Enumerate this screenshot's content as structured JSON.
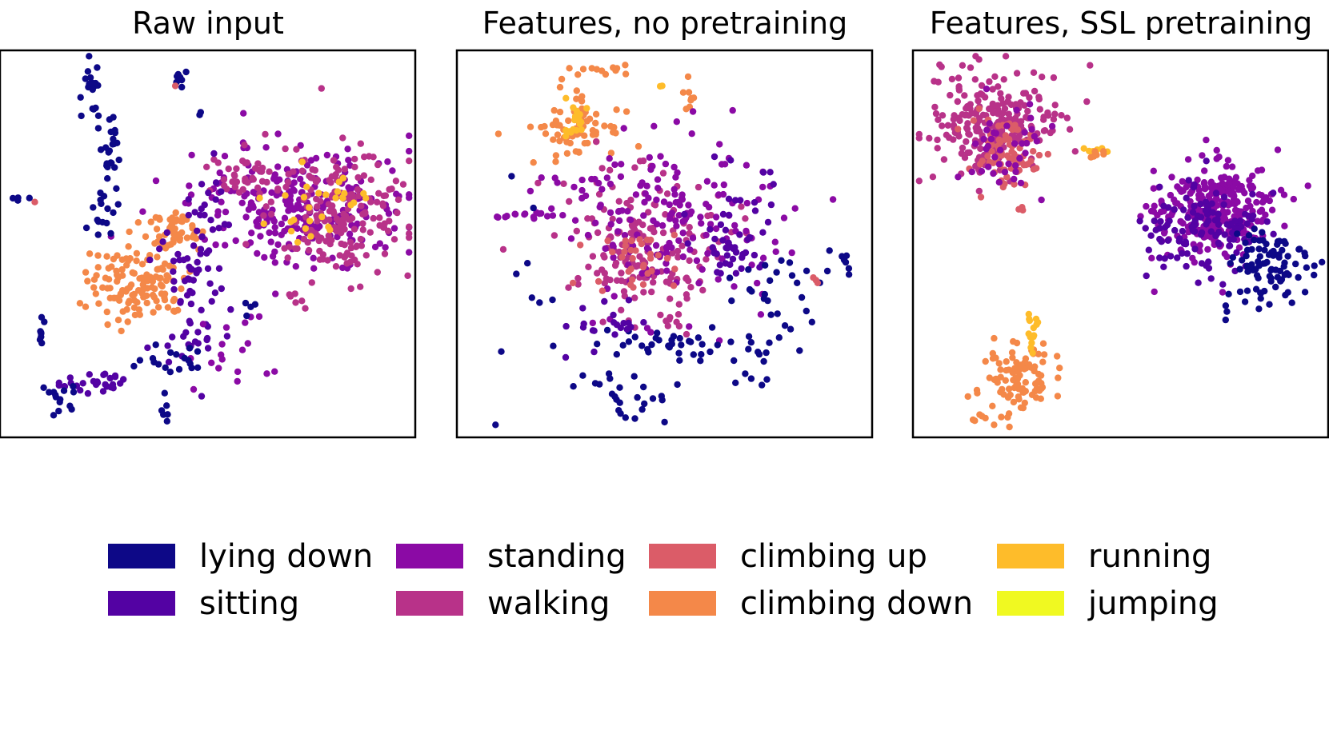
{
  "chart_data": [
    {
      "type": "scatter",
      "title": "Raw input",
      "grid": false,
      "axes_visible": false,
      "clusters": [
        {
          "class": 5,
          "cx": 0.33,
          "cy": 0.6,
          "sx": 0.06,
          "sy": 0.05,
          "n": 130
        },
        {
          "class": 5,
          "cx": 0.42,
          "cy": 0.47,
          "sx": 0.04,
          "sy": 0.03,
          "n": 45
        },
        {
          "class": 2,
          "cx": 0.72,
          "cy": 0.4,
          "sx": 0.13,
          "sy": 0.07,
          "n": 260
        },
        {
          "class": 3,
          "cx": 0.82,
          "cy": 0.42,
          "sx": 0.08,
          "sy": 0.08,
          "n": 190
        },
        {
          "class": 3,
          "cx": 0.6,
          "cy": 0.33,
          "sx": 0.06,
          "sy": 0.03,
          "n": 40
        },
        {
          "class": 6,
          "cx": 0.8,
          "cy": 0.37,
          "sx": 0.06,
          "sy": 0.05,
          "n": 22
        },
        {
          "class": 6,
          "cx": 0.7,
          "cy": 0.46,
          "sx": 0.03,
          "sy": 0.02,
          "n": 8
        },
        {
          "class": 1,
          "cx": 0.46,
          "cy": 0.66,
          "sx": 0.04,
          "sy": 0.1,
          "n": 60
        },
        {
          "class": 1,
          "cx": 0.48,
          "cy": 0.42,
          "sx": 0.03,
          "sy": 0.08,
          "n": 25
        },
        {
          "class": 2,
          "cx": 0.55,
          "cy": 0.78,
          "sx": 0.05,
          "sy": 0.05,
          "n": 18
        },
        {
          "class": 1,
          "cx": 0.22,
          "cy": 0.86,
          "sx": 0.04,
          "sy": 0.015,
          "n": 28
        },
        {
          "class": 0,
          "cx": 0.22,
          "cy": 0.1,
          "sx": 0.012,
          "sy": 0.05,
          "n": 22
        },
        {
          "class": 0,
          "cx": 0.27,
          "cy": 0.25,
          "sx": 0.012,
          "sy": 0.05,
          "n": 22
        },
        {
          "class": 0,
          "cx": 0.25,
          "cy": 0.4,
          "sx": 0.02,
          "sy": 0.04,
          "n": 15
        },
        {
          "class": 0,
          "cx": 0.43,
          "cy": 0.07,
          "sx": 0.008,
          "sy": 0.015,
          "n": 8
        },
        {
          "class": 0,
          "cx": 0.06,
          "cy": 0.38,
          "sx": 0.02,
          "sy": 0.005,
          "n": 5
        },
        {
          "class": 0,
          "cx": 0.1,
          "cy": 0.73,
          "sx": 0.006,
          "sy": 0.025,
          "n": 8
        },
        {
          "class": 0,
          "cx": 0.15,
          "cy": 0.91,
          "sx": 0.02,
          "sy": 0.03,
          "n": 14
        },
        {
          "class": 0,
          "cx": 0.36,
          "cy": 0.8,
          "sx": 0.03,
          "sy": 0.015,
          "n": 10
        },
        {
          "class": 0,
          "cx": 0.4,
          "cy": 0.93,
          "sx": 0.006,
          "sy": 0.02,
          "n": 6
        },
        {
          "class": 0,
          "cx": 0.46,
          "cy": 0.8,
          "sx": 0.015,
          "sy": 0.02,
          "n": 8
        },
        {
          "class": 0,
          "cx": 0.6,
          "cy": 0.67,
          "sx": 0.01,
          "sy": 0.02,
          "n": 4
        },
        {
          "class": 3,
          "cx": 0.72,
          "cy": 0.65,
          "sx": 0.015,
          "sy": 0.01,
          "n": 6
        },
        {
          "class": 0,
          "cx": 0.48,
          "cy": 0.16,
          "sx": 0.004,
          "sy": 0.004,
          "n": 2
        },
        {
          "class": 4,
          "cx": 0.08,
          "cy": 0.4,
          "sx": 0.005,
          "sy": 0.005,
          "n": 1
        },
        {
          "class": 4,
          "cx": 0.43,
          "cy": 0.09,
          "sx": 0.004,
          "sy": 0.004,
          "n": 1
        }
      ]
    },
    {
      "type": "scatter",
      "title": "Features, no pretraining",
      "grid": false,
      "axes_visible": false,
      "clusters": [
        {
          "class": 5,
          "cx": 0.28,
          "cy": 0.2,
          "sx": 0.06,
          "sy": 0.04,
          "n": 70
        },
        {
          "class": 5,
          "cx": 0.36,
          "cy": 0.05,
          "sx": 0.04,
          "sy": 0.008,
          "n": 12
        },
        {
          "class": 5,
          "cx": 0.57,
          "cy": 0.11,
          "sx": 0.015,
          "sy": 0.03,
          "n": 8
        },
        {
          "class": 6,
          "cx": 0.29,
          "cy": 0.18,
          "sx": 0.02,
          "sy": 0.02,
          "n": 18
        },
        {
          "class": 6,
          "cx": 0.49,
          "cy": 0.09,
          "sx": 0.005,
          "sy": 0.005,
          "n": 2
        },
        {
          "class": 3,
          "cx": 0.45,
          "cy": 0.5,
          "sx": 0.09,
          "sy": 0.09,
          "n": 170
        },
        {
          "class": 2,
          "cx": 0.52,
          "cy": 0.43,
          "sx": 0.13,
          "sy": 0.11,
          "n": 170
        },
        {
          "class": 4,
          "cx": 0.43,
          "cy": 0.55,
          "sx": 0.05,
          "sy": 0.04,
          "n": 35
        },
        {
          "class": 2,
          "cx": 0.18,
          "cy": 0.43,
          "sx": 0.05,
          "sy": 0.008,
          "n": 15
        },
        {
          "class": 1,
          "cx": 0.65,
          "cy": 0.5,
          "sx": 0.04,
          "sy": 0.05,
          "n": 40
        },
        {
          "class": 0,
          "cx": 0.48,
          "cy": 0.76,
          "sx": 0.08,
          "sy": 0.02,
          "n": 35
        },
        {
          "class": 0,
          "cx": 0.4,
          "cy": 0.88,
          "sx": 0.05,
          "sy": 0.04,
          "n": 25
        },
        {
          "class": 0,
          "cx": 0.77,
          "cy": 0.62,
          "sx": 0.06,
          "sy": 0.06,
          "n": 25
        },
        {
          "class": 0,
          "cx": 0.7,
          "cy": 0.78,
          "sx": 0.06,
          "sy": 0.05,
          "n": 15
        },
        {
          "class": 0,
          "cx": 0.93,
          "cy": 0.56,
          "sx": 0.02,
          "sy": 0.03,
          "n": 8
        },
        {
          "class": 0,
          "cx": 0.2,
          "cy": 0.65,
          "sx": 0.12,
          "sy": 0.15,
          "n": 10
        },
        {
          "class": 1,
          "cx": 0.36,
          "cy": 0.72,
          "sx": 0.04,
          "sy": 0.04,
          "n": 20
        },
        {
          "class": 1,
          "cx": 0.72,
          "cy": 0.35,
          "sx": 0.03,
          "sy": 0.05,
          "n": 10
        },
        {
          "class": 2,
          "cx": 0.3,
          "cy": 0.35,
          "sx": 0.04,
          "sy": 0.02,
          "n": 10
        },
        {
          "class": 3,
          "cx": 0.52,
          "cy": 0.69,
          "sx": 0.02,
          "sy": 0.02,
          "n": 10
        },
        {
          "class": 4,
          "cx": 0.86,
          "cy": 0.6,
          "sx": 0.005,
          "sy": 0.01,
          "n": 3
        }
      ]
    },
    {
      "type": "scatter",
      "title": "Features, SSL pretraining",
      "grid": false,
      "axes_visible": false,
      "clusters": [
        {
          "class": 3,
          "cx": 0.2,
          "cy": 0.19,
          "sx": 0.08,
          "sy": 0.07,
          "n": 230
        },
        {
          "class": 4,
          "cx": 0.22,
          "cy": 0.27,
          "sx": 0.04,
          "sy": 0.05,
          "n": 80
        },
        {
          "class": 2,
          "cx": 0.23,
          "cy": 0.25,
          "sx": 0.05,
          "sy": 0.05,
          "n": 40
        },
        {
          "class": 6,
          "cx": 0.44,
          "cy": 0.26,
          "sx": 0.015,
          "sy": 0.006,
          "n": 8
        },
        {
          "class": 5,
          "cx": 0.44,
          "cy": 0.27,
          "sx": 0.015,
          "sy": 0.006,
          "n": 6
        },
        {
          "class": 4,
          "cx": 0.26,
          "cy": 0.41,
          "sx": 0.005,
          "sy": 0.008,
          "n": 3
        },
        {
          "class": 2,
          "cx": 0.72,
          "cy": 0.41,
          "sx": 0.07,
          "sy": 0.06,
          "n": 300
        },
        {
          "class": 1,
          "cx": 0.7,
          "cy": 0.47,
          "sx": 0.07,
          "sy": 0.06,
          "n": 120
        },
        {
          "class": 0,
          "cx": 0.86,
          "cy": 0.56,
          "sx": 0.05,
          "sy": 0.05,
          "n": 90
        },
        {
          "class": 0,
          "cx": 0.75,
          "cy": 0.69,
          "sx": 0.005,
          "sy": 0.01,
          "n": 3
        },
        {
          "class": 5,
          "cx": 0.25,
          "cy": 0.85,
          "sx": 0.04,
          "sy": 0.05,
          "n": 95
        },
        {
          "class": 5,
          "cx": 0.18,
          "cy": 0.95,
          "sx": 0.02,
          "sy": 0.01,
          "n": 8
        },
        {
          "class": 6,
          "cx": 0.29,
          "cy": 0.72,
          "sx": 0.008,
          "sy": 0.03,
          "n": 15
        }
      ]
    }
  ],
  "legend": {
    "placement": "bottom",
    "items": [
      {
        "label": "lying down",
        "color": "#0d0887"
      },
      {
        "label": "sitting",
        "color": "#5302a3"
      },
      {
        "label": "standing",
        "color": "#8b0aa5"
      },
      {
        "label": "walking",
        "color": "#b83289"
      },
      {
        "label": "climbing up",
        "color": "#db5c68"
      },
      {
        "label": "climbing down",
        "color": "#f48849"
      },
      {
        "label": "running",
        "color": "#febc2a"
      },
      {
        "label": "jumping",
        "color": "#f0f921"
      }
    ]
  }
}
